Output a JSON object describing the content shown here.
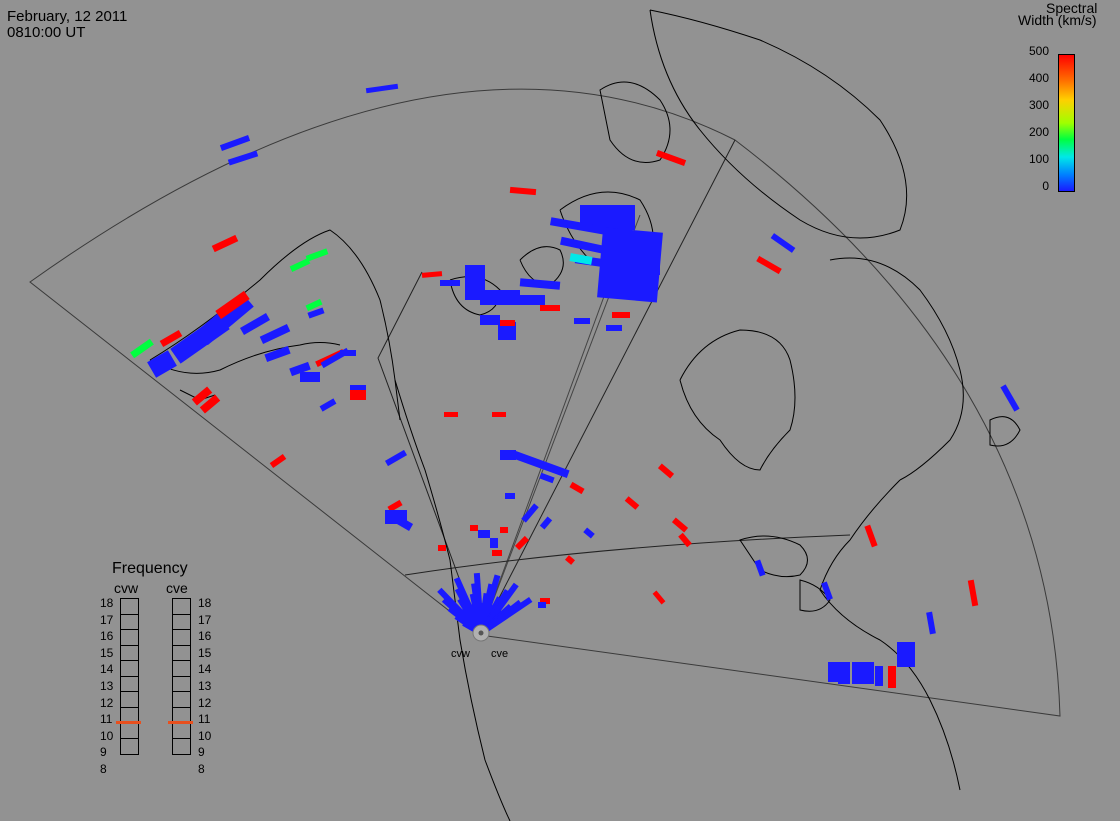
{
  "header": {
    "date": "February, 12 2011",
    "time": "0810:00 UT"
  },
  "legend": {
    "title_line1": "Spectral",
    "title_line2": "Width (km/s)",
    "ticks": [
      "500",
      "400",
      "300",
      "200",
      "100",
      "0"
    ],
    "colors": [
      "#ff0000",
      "#ff6a00",
      "#ffd000",
      "#00ff40",
      "#00e8e8",
      "#1a1aff"
    ]
  },
  "frequency": {
    "title": "Frequency",
    "left_radar": "cvw",
    "right_radar": "cve",
    "scale": [
      "18",
      "17",
      "16",
      "15",
      "14",
      "13",
      "12",
      "11",
      "10",
      "9",
      "8"
    ],
    "cvw_value_mhz": 10.8,
    "cve_value_mhz": 10.8
  },
  "radars": {
    "west": "cvw",
    "east": "cve"
  },
  "colors": {
    "background": "#929292",
    "coast": "#000000",
    "fov": "#333333",
    "low_width": "#1a1aff",
    "high_width": "#ff0000",
    "mid_width": "#00ff40"
  }
}
